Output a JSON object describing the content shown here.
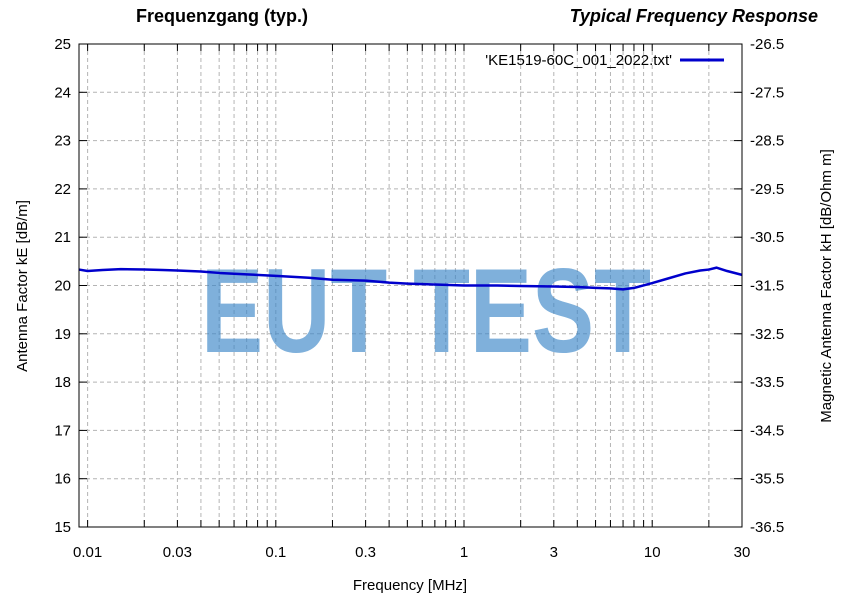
{
  "titles": {
    "left": "Frequenzgang (typ.)",
    "right": "Typical Frequency Response"
  },
  "watermark": "EUT TEST",
  "chart_data": {
    "type": "line",
    "xlabel": "Frequency [MHz]",
    "ylabel": "Antenna Factor kE [dB/m]",
    "y2label": "Magnetic Antenna Factor kH [dB/Ohm m]",
    "xscale": "log",
    "xlim": [
      0.009,
      30
    ],
    "ylim": [
      15,
      25
    ],
    "y2lim": [
      -36.5,
      -26.5
    ],
    "grid": true,
    "legend_position": "top-right",
    "x_ticks": [
      "0.01",
      "0.03",
      "0.1",
      "0.3",
      "1",
      "3",
      "10",
      "30"
    ],
    "x_tick_values": [
      0.01,
      0.03,
      0.1,
      0.3,
      1,
      3,
      10,
      30
    ],
    "y_ticks": [
      "15",
      "16",
      "17",
      "18",
      "19",
      "20",
      "21",
      "22",
      "23",
      "24",
      "25"
    ],
    "y_tick_values": [
      15,
      16,
      17,
      18,
      19,
      20,
      21,
      22,
      23,
      24,
      25
    ],
    "y2_ticks": [
      "-36.5",
      "-35.5",
      "-34.5",
      "-33.5",
      "-32.5",
      "-31.5",
      "-30.5",
      "-29.5",
      "-28.5",
      "-27.5",
      "-26.5"
    ],
    "series": [
      {
        "name": "'KE1519-60C_001_2022.txt'",
        "color": "#0000cc",
        "x": [
          0.009,
          0.01,
          0.012,
          0.015,
          0.02,
          0.025,
          0.03,
          0.04,
          0.05,
          0.07,
          0.1,
          0.15,
          0.2,
          0.3,
          0.4,
          0.5,
          0.7,
          1,
          1.5,
          2,
          3,
          4,
          5,
          6,
          7,
          8,
          10,
          12,
          15,
          18,
          20,
          22,
          25,
          30
        ],
        "y": [
          20.33,
          20.3,
          20.32,
          20.34,
          20.33,
          20.32,
          20.31,
          20.29,
          20.26,
          20.23,
          20.2,
          20.16,
          20.12,
          20.1,
          20.06,
          20.04,
          20.02,
          20.0,
          20.0,
          19.99,
          19.98,
          19.97,
          19.95,
          19.94,
          19.92,
          19.95,
          20.05,
          20.14,
          20.25,
          20.31,
          20.33,
          20.37,
          20.3,
          20.22
        ]
      }
    ]
  }
}
